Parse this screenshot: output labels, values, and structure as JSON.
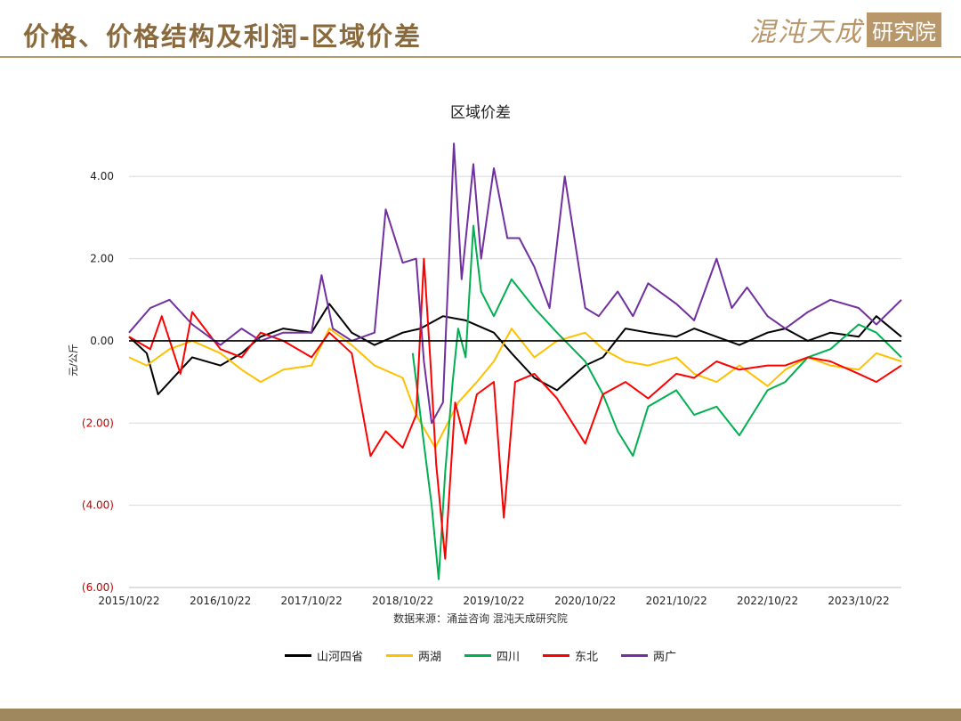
{
  "header": {
    "title": "价格、价格结构及利润-区域价差",
    "logo_text": "混沌天成",
    "logo_box": "研究院"
  },
  "chart_data": {
    "type": "line",
    "title": "区域价差",
    "ylabel": "元/公斤",
    "source": "数据来源：涌益咨询 混沌天成研究院",
    "ylim": [
      -6,
      4.2
    ],
    "yticks": [
      4,
      2,
      0,
      -2,
      -4,
      -6
    ],
    "ytick_labels": [
      "4.00",
      "2.00",
      "0.00",
      "(2.00)",
      "(4.00)",
      "(6.00)"
    ],
    "negative_tick_color": "#c00000",
    "xlim": [
      "2015-10-22",
      "2024-04-10"
    ],
    "xticks": [
      "2015-10-22",
      "2016-10-22",
      "2017-10-22",
      "2018-10-22",
      "2019-10-22",
      "2020-10-22",
      "2021-10-22",
      "2022-10-22",
      "2023-10-22"
    ],
    "xtick_labels": [
      "2015/10/22",
      "2016/10/22",
      "2017/10/22",
      "2018/10/22",
      "2019/10/22",
      "2020/10/22",
      "2021/10/22",
      "2022/10/22",
      "2023/10/22"
    ],
    "legend_position": "bottom",
    "grid": "horizontal",
    "series": [
      {
        "name": "山河四省",
        "color": "#000000",
        "x": [
          "2015-10-22",
          "2016-01-01",
          "2016-02-15",
          "2016-04-01",
          "2016-07-01",
          "2016-10-22",
          "2017-01-15",
          "2017-04-01",
          "2017-07-01",
          "2017-10-22",
          "2018-01-01",
          "2018-04-01",
          "2018-07-01",
          "2018-10-22",
          "2019-01-01",
          "2019-04-01",
          "2019-07-01",
          "2019-10-22",
          "2020-01-01",
          "2020-04-01",
          "2020-07-01",
          "2020-10-22",
          "2021-01-01",
          "2021-04-01",
          "2021-07-01",
          "2021-10-22",
          "2022-01-01",
          "2022-04-01",
          "2022-07-01",
          "2022-10-22",
          "2023-01-01",
          "2023-04-01",
          "2023-07-01",
          "2023-10-22",
          "2024-01-01",
          "2024-04-10"
        ],
        "y": [
          0.1,
          -0.3,
          -1.3,
          -1.0,
          -0.4,
          -0.6,
          -0.3,
          0.1,
          0.3,
          0.2,
          0.9,
          0.2,
          -0.1,
          0.2,
          0.3,
          0.6,
          0.5,
          0.2,
          -0.3,
          -0.9,
          -1.2,
          -0.6,
          -0.4,
          0.3,
          0.2,
          0.1,
          0.3,
          0.1,
          -0.1,
          0.2,
          0.3,
          0.0,
          0.2,
          0.1,
          0.6,
          0.1
        ]
      },
      {
        "name": "两湖",
        "color": "#ffc000",
        "x": [
          "2015-10-22",
          "2016-01-01",
          "2016-04-01",
          "2016-07-01",
          "2016-10-22",
          "2017-01-15",
          "2017-04-01",
          "2017-07-01",
          "2017-10-22",
          "2018-01-01",
          "2018-04-01",
          "2018-07-01",
          "2018-10-22",
          "2018-12-15",
          "2019-03-01",
          "2019-06-01",
          "2019-08-15",
          "2019-10-22",
          "2020-01-01",
          "2020-04-01",
          "2020-07-01",
          "2020-10-22",
          "2021-01-01",
          "2021-04-01",
          "2021-07-01",
          "2021-10-22",
          "2022-01-01",
          "2022-04-01",
          "2022-07-01",
          "2022-10-22",
          "2023-01-01",
          "2023-04-01",
          "2023-07-01",
          "2023-10-22",
          "2024-01-01",
          "2024-04-10"
        ],
        "y": [
          -0.4,
          -0.6,
          -0.2,
          0.0,
          -0.3,
          -0.7,
          -1.0,
          -0.7,
          -0.6,
          0.3,
          -0.1,
          -0.6,
          -0.9,
          -1.8,
          -2.6,
          -1.5,
          -1.0,
          -0.5,
          0.3,
          -0.4,
          0.0,
          0.2,
          -0.2,
          -0.5,
          -0.6,
          -0.4,
          -0.8,
          -1.0,
          -0.6,
          -1.1,
          -0.7,
          -0.4,
          -0.6,
          -0.7,
          -0.3,
          -0.5
        ]
      },
      {
        "name": "四川",
        "color": "#00b050",
        "x": [
          "2018-12-01",
          "2019-01-15",
          "2019-02-15",
          "2019-03-15",
          "2019-04-10",
          "2019-05-10",
          "2019-06-01",
          "2019-07-01",
          "2019-08-01",
          "2019-09-01",
          "2019-10-22",
          "2020-01-01",
          "2020-04-01",
          "2020-07-01",
          "2020-10-22",
          "2021-01-01",
          "2021-03-01",
          "2021-05-01",
          "2021-07-01",
          "2021-10-22",
          "2022-01-01",
          "2022-04-01",
          "2022-07-01",
          "2022-10-22",
          "2023-01-01",
          "2023-04-01",
          "2023-07-01",
          "2023-10-22",
          "2024-01-01",
          "2024-04-10"
        ],
        "y": [
          -0.3,
          -2.5,
          -4.0,
          -5.8,
          -3.2,
          -1.0,
          0.3,
          -0.4,
          2.8,
          1.2,
          0.6,
          1.5,
          0.8,
          0.2,
          -0.5,
          -1.3,
          -2.2,
          -2.8,
          -1.6,
          -1.2,
          -1.8,
          -1.6,
          -2.3,
          -1.2,
          -1.0,
          -0.4,
          -0.2,
          0.4,
          0.2,
          -0.4
        ]
      },
      {
        "name": "东北",
        "color": "#ff0000",
        "x": [
          "2015-10-22",
          "2016-01-15",
          "2016-03-01",
          "2016-05-15",
          "2016-07-01",
          "2016-10-22",
          "2017-01-15",
          "2017-04-01",
          "2017-07-01",
          "2017-10-22",
          "2018-01-01",
          "2018-04-01",
          "2018-06-15",
          "2018-08-15",
          "2018-10-22",
          "2018-12-15",
          "2019-01-15",
          "2019-02-10",
          "2019-03-05",
          "2019-04-10",
          "2019-05-20",
          "2019-07-01",
          "2019-08-15",
          "2019-10-22",
          "2019-12-01",
          "2020-01-15",
          "2020-04-01",
          "2020-07-01",
          "2020-10-22",
          "2021-01-01",
          "2021-04-01",
          "2021-07-01",
          "2021-10-22",
          "2022-01-01",
          "2022-04-01",
          "2022-07-01",
          "2022-10-22",
          "2023-01-01",
          "2023-04-01",
          "2023-07-01",
          "2023-10-22",
          "2024-01-01",
          "2024-04-10"
        ],
        "y": [
          0.1,
          -0.2,
          0.6,
          -0.8,
          0.7,
          -0.2,
          -0.4,
          0.2,
          0.0,
          -0.4,
          0.2,
          -0.3,
          -2.8,
          -2.2,
          -2.6,
          -1.8,
          2.0,
          -0.5,
          -3.0,
          -5.3,
          -1.5,
          -2.5,
          -1.3,
          -1.0,
          -4.3,
          -1.0,
          -0.8,
          -1.4,
          -2.5,
          -1.3,
          -1.0,
          -1.4,
          -0.8,
          -0.9,
          -0.5,
          -0.7,
          -0.6,
          -0.6,
          -0.4,
          -0.5,
          -0.8,
          -1.0,
          -0.6
        ]
      },
      {
        "name": "两广",
        "color": "#7030a0",
        "x": [
          "2015-10-22",
          "2016-01-15",
          "2016-04-01",
          "2016-07-01",
          "2016-10-22",
          "2017-01-15",
          "2017-04-01",
          "2017-07-01",
          "2017-10-22",
          "2017-12-01",
          "2018-01-15",
          "2018-04-01",
          "2018-07-01",
          "2018-08-15",
          "2018-10-22",
          "2018-12-15",
          "2019-01-15",
          "2019-02-15",
          "2019-04-01",
          "2019-05-15",
          "2019-06-15",
          "2019-08-01",
          "2019-09-01",
          "2019-10-22",
          "2019-12-15",
          "2020-02-01",
          "2020-04-01",
          "2020-06-01",
          "2020-08-01",
          "2020-10-22",
          "2020-12-15",
          "2021-03-01",
          "2021-05-01",
          "2021-07-01",
          "2021-10-22",
          "2022-01-01",
          "2022-04-01",
          "2022-06-01",
          "2022-08-01",
          "2022-10-22",
          "2023-01-01",
          "2023-04-01",
          "2023-07-01",
          "2023-10-22",
          "2024-01-01",
          "2024-04-10"
        ],
        "y": [
          0.2,
          0.8,
          1.0,
          0.4,
          -0.1,
          0.3,
          0.0,
          0.2,
          0.2,
          1.6,
          0.3,
          0.0,
          0.2,
          3.2,
          1.9,
          2.0,
          -0.5,
          -2.0,
          -1.5,
          4.8,
          1.5,
          4.3,
          2.0,
          4.2,
          2.5,
          2.5,
          1.8,
          0.8,
          4.0,
          0.8,
          0.6,
          1.2,
          0.6,
          1.4,
          0.9,
          0.5,
          2.0,
          0.8,
          1.3,
          0.6,
          0.3,
          0.7,
          1.0,
          0.8,
          0.4,
          1.0
        ]
      }
    ]
  }
}
